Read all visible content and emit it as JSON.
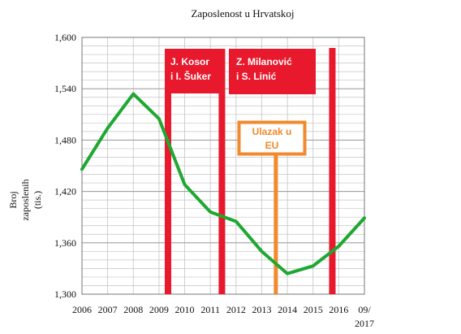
{
  "chart_data": {
    "type": "line",
    "title": "Zaposlenost u Hrvatskoj",
    "ylabel_lines": [
      "Broj",
      "zaposlenih",
      "(tis.)"
    ],
    "categories": [
      "2006",
      "2007",
      "2008",
      "2009",
      "2010",
      "2011",
      "2012",
      "2013",
      "2014",
      "2015",
      "2016",
      "09/2017"
    ],
    "x_tick_labels": [
      {
        "text": "2006",
        "sub": ""
      },
      {
        "text": "2007",
        "sub": ""
      },
      {
        "text": "2008",
        "sub": ""
      },
      {
        "text": "2009",
        "sub": ""
      },
      {
        "text": "2010",
        "sub": ""
      },
      {
        "text": "2011",
        "sub": ""
      },
      {
        "text": "2012",
        "sub": ""
      },
      {
        "text": "2013",
        "sub": ""
      },
      {
        "text": "2014",
        "sub": ""
      },
      {
        "text": "2015",
        "sub": ""
      },
      {
        "text": "2016",
        "sub": ""
      },
      {
        "text": "09/",
        "sub": "2017"
      }
    ],
    "values": [
      1446,
      1494,
      1534,
      1505,
      1428,
      1396,
      1385,
      1350,
      1324,
      1333,
      1356,
      1389
    ],
    "ylim": [
      1300,
      1600
    ],
    "yticks": [
      1300,
      1360,
      1420,
      1480,
      1540,
      1600
    ],
    "ytick_labels": [
      "1,300",
      "1,360",
      "1,420",
      "1,480",
      "1,540",
      "1,600"
    ],
    "grid": true,
    "annotations": [
      {
        "lines": [
          "J. Kosor",
          "i I. Šuker"
        ],
        "start": 2009.35,
        "end": 2011.45
      },
      {
        "lines": [
          "Z. Milanović",
          "i S. Linić"
        ],
        "start": 2011.6,
        "end": 2015.75
      },
      {
        "lines": [
          "Ulazak u",
          "EU"
        ],
        "at": 2013.55
      }
    ],
    "colors": {
      "line": "#1ea832",
      "government": "#e8192c",
      "eu": "#f08a2c",
      "grid": "#c4c4c4",
      "frame": "#777777"
    }
  }
}
